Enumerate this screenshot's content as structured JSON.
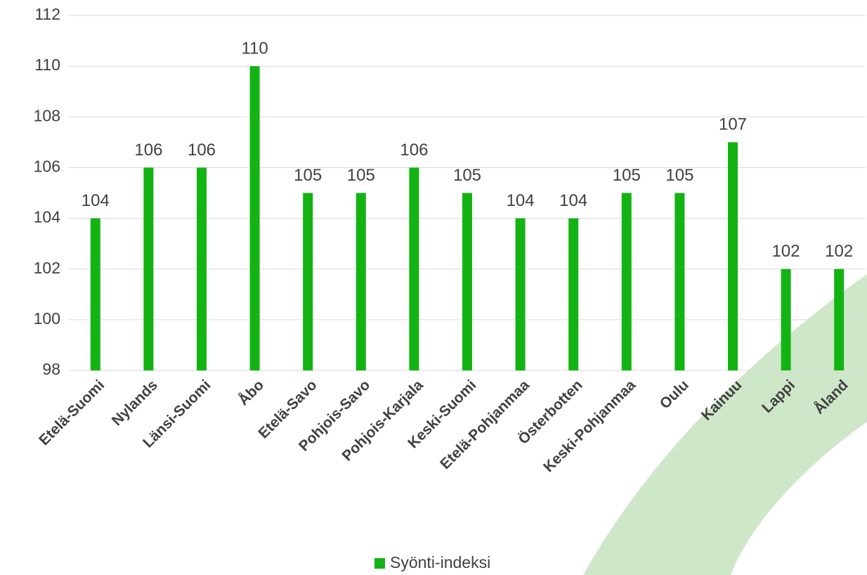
{
  "chart_data": {
    "type": "bar",
    "categories": [
      "Etelä-Suomi",
      "Nylands",
      "Länsi-Suomi",
      "Åbo",
      "Etelä-Savo",
      "Pohjois-Savo",
      "Pohjois-Karjala",
      "Keski-Suomi",
      "Etelä-Pohjanmaa",
      "Österbotten",
      "Keski-Pohjanmaa",
      "Oulu",
      "Kainuu",
      "Lappi",
      "Åland"
    ],
    "series": [
      {
        "name": "Syönti-indeksi",
        "color": "#13b313",
        "values": [
          104,
          106,
          106,
          110,
          105,
          105,
          106,
          105,
          104,
          104,
          105,
          105,
          107,
          102,
          102
        ]
      }
    ],
    "ylim": [
      98,
      112
    ],
    "yticks": [
      98,
      100,
      102,
      104,
      106,
      108,
      110,
      112
    ],
    "grid": true,
    "legend": "bottom"
  }
}
